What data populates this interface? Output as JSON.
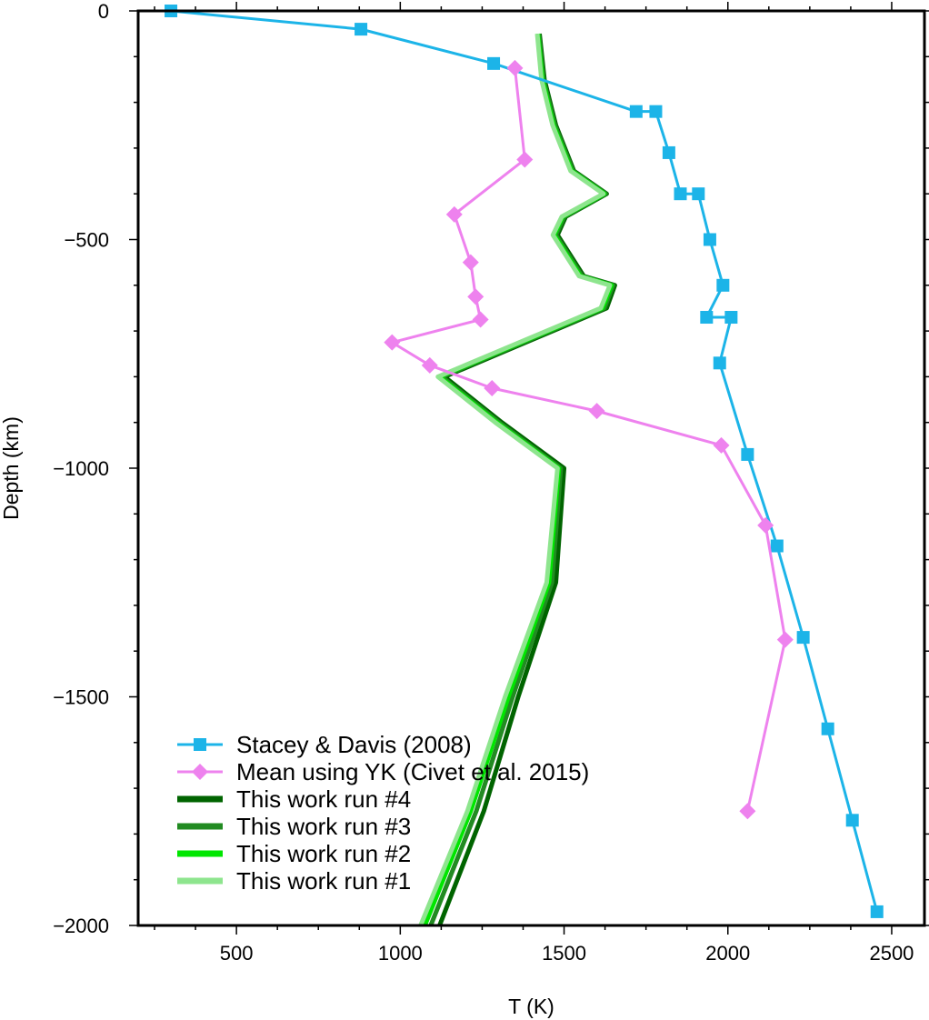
{
  "chart_data": {
    "type": "line",
    "title": "",
    "xlabel": "T (K)",
    "ylabel": "Depth (km)",
    "xlim": [
      200,
      2600
    ],
    "ylim": [
      -2000,
      0
    ],
    "x_ticks": [
      500,
      1000,
      1500,
      2000,
      2500
    ],
    "x_tick_labels": [
      "500",
      "1000",
      "1500",
      "2000",
      "2500"
    ],
    "y_ticks": [
      0,
      -500,
      -1000,
      -1500,
      -2000
    ],
    "y_tick_labels": [
      "0",
      "−500",
      "−1000",
      "−1500",
      "−2000"
    ],
    "grid": false,
    "legend_position": "bottom-left",
    "series": [
      {
        "name": "Stacey & Davis (2008)",
        "color": "#1cb4e8",
        "marker": "square",
        "line_width": 3,
        "x": [
          300,
          880,
          1285,
          1720,
          1780,
          1820,
          1855,
          1910,
          1945,
          1985,
          1935,
          2010,
          1975,
          2060,
          2150,
          2230,
          2305,
          2380,
          2455
        ],
        "y": [
          0,
          -40,
          -115,
          -220,
          -220,
          -310,
          -400,
          -400,
          -500,
          -600,
          -670,
          -670,
          -770,
          -970,
          -1170,
          -1370,
          -1570,
          -1770,
          -1970
        ]
      },
      {
        "name": "Mean using YK (Civet et al. 2015)",
        "color": "#ee82ee",
        "marker": "diamond",
        "line_width": 3,
        "x": [
          1350,
          1380,
          1165,
          1215,
          1230,
          1245,
          975,
          1090,
          1280,
          1600,
          1980,
          2115,
          2175,
          2060
        ],
        "y": [
          -125,
          -325,
          -445,
          -550,
          -625,
          -675,
          -725,
          -775,
          -825,
          -875,
          -950,
          -1125,
          -1375,
          -1750
        ]
      },
      {
        "name": "This work run #4",
        "color": "#006400",
        "marker": "none",
        "line_width": 5,
        "x": [
          1425,
          1440,
          1475,
          1530,
          1630,
          1505,
          1480,
          1560,
          1655,
          1630,
          1135,
          1310,
          1500,
          1475,
          1360,
          1255,
          1120
        ],
        "y": [
          -50,
          -150,
          -250,
          -350,
          -400,
          -450,
          -490,
          -580,
          -600,
          -650,
          -800,
          -900,
          -1000,
          -1250,
          -1500,
          -1750,
          -2000
        ]
      },
      {
        "name": "This work run #3",
        "color": "#228b22",
        "marker": "none",
        "line_width": 5,
        "x": [
          1423,
          1437,
          1472,
          1527,
          1627,
          1501,
          1475,
          1555,
          1650,
          1623,
          1127,
          1302,
          1490,
          1463,
          1343,
          1232,
          1093
        ],
        "y": [
          -50,
          -150,
          -250,
          -350,
          -400,
          -450,
          -490,
          -580,
          -600,
          -650,
          -800,
          -900,
          -1000,
          -1250,
          -1500,
          -1750,
          -2000
        ]
      },
      {
        "name": "This work run #2",
        "color": "#00e600",
        "marker": "none",
        "line_width": 5,
        "x": [
          1420,
          1434,
          1468,
          1523,
          1623,
          1496,
          1470,
          1550,
          1645,
          1617,
          1120,
          1295,
          1484,
          1454,
          1330,
          1215,
          1075
        ],
        "y": [
          -50,
          -150,
          -250,
          -350,
          -400,
          -450,
          -490,
          -580,
          -600,
          -650,
          -800,
          -900,
          -1000,
          -1250,
          -1500,
          -1750,
          -2000
        ]
      },
      {
        "name": "This work run #1",
        "color": "#8ee58e",
        "marker": "none",
        "line_width": 5,
        "x": [
          1418,
          1431,
          1465,
          1520,
          1620,
          1493,
          1466,
          1546,
          1640,
          1612,
          1115,
          1290,
          1480,
          1447,
          1320,
          1205,
          1062
        ],
        "y": [
          -50,
          -150,
          -250,
          -350,
          -400,
          -450,
          -490,
          -580,
          -600,
          -650,
          -800,
          -900,
          -1000,
          -1250,
          -1500,
          -1750,
          -2000
        ]
      }
    ]
  }
}
